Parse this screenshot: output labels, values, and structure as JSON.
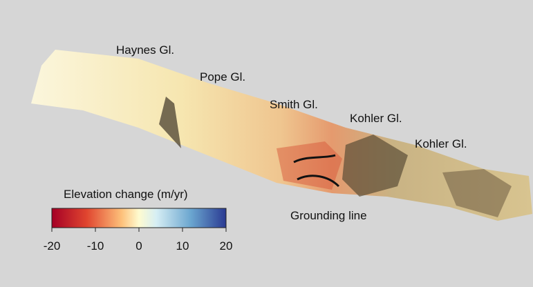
{
  "labels": [
    "Haynes Gl.",
    "Pope Gl.",
    "Smith Gl.",
    "Kohler Gl.",
    "Kohler Gl.",
    "Grounding line"
  ],
  "colorbar": {
    "title": "Elevation change (m/yr)",
    "range": [
      -20,
      20
    ],
    "ticks": [
      -20,
      -10,
      0,
      10,
      20
    ]
  }
}
